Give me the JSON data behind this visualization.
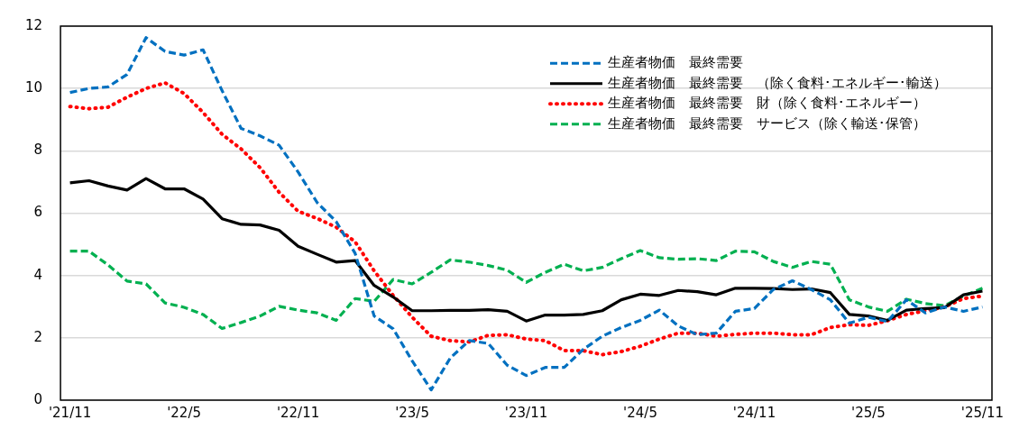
{
  "chart_data": {
    "type": "line",
    "categories": [
      "'21/11",
      null,
      null,
      null,
      null,
      null,
      "'22/5",
      null,
      null,
      null,
      null,
      null,
      "'22/11",
      null,
      null,
      null,
      null,
      null,
      "'23/5",
      null,
      null,
      null,
      null,
      null,
      "'23/11",
      null,
      null,
      null,
      null,
      null,
      "'24/5",
      null,
      null,
      null,
      null,
      null,
      "'24/11",
      null,
      null,
      null,
      null,
      null,
      "'25/5",
      null,
      null,
      null,
      null,
      null,
      "'25/11"
    ],
    "series": [
      {
        "name": "生産者物価　最終需要",
        "color": "#0070c0",
        "line_style": "dashed",
        "values": [
          9.87,
          10.0,
          10.05,
          10.45,
          11.63,
          11.19,
          11.07,
          11.24,
          9.93,
          8.72,
          8.48,
          8.18,
          7.32,
          6.34,
          5.73,
          4.71,
          2.7,
          2.29,
          1.26,
          0.33,
          1.35,
          1.91,
          1.82,
          1.12,
          0.79,
          1.05,
          1.05,
          1.63,
          2.05,
          2.33,
          2.56,
          2.89,
          2.38,
          2.1,
          2.15,
          2.85,
          2.94,
          3.55,
          3.83,
          3.55,
          3.22,
          2.47,
          2.66,
          2.52,
          3.22,
          2.8,
          2.99,
          2.85,
          2.99
        ]
      },
      {
        "name": "生産者物価　最終需要　（除く食料･エネルギー･輸送）",
        "color": "#000000",
        "line_style": "solid",
        "values": [
          6.97,
          7.04,
          6.87,
          6.74,
          7.11,
          6.78,
          6.78,
          6.45,
          5.82,
          5.64,
          5.62,
          5.45,
          4.94,
          4.68,
          4.43,
          4.48,
          3.68,
          3.31,
          2.87,
          2.87,
          2.88,
          2.88,
          2.9,
          2.85,
          2.54,
          2.73,
          2.73,
          2.75,
          2.87,
          3.22,
          3.4,
          3.36,
          3.52,
          3.48,
          3.38,
          3.59,
          3.59,
          3.58,
          3.55,
          3.57,
          3.45,
          2.75,
          2.7,
          2.56,
          2.89,
          2.94,
          2.97,
          3.38,
          3.5
        ]
      },
      {
        "name": "生産者物価　最終需要　財（除く食料･エネルギー）",
        "color": "#ff0000",
        "line_style": "dotted",
        "values": [
          9.42,
          9.35,
          9.4,
          9.72,
          10.0,
          10.18,
          9.84,
          9.23,
          8.53,
          8.06,
          7.46,
          6.67,
          6.06,
          5.83,
          5.55,
          5.08,
          4.15,
          3.36,
          2.66,
          2.05,
          1.91,
          1.87,
          2.08,
          2.1,
          1.96,
          1.91,
          1.59,
          1.59,
          1.46,
          1.56,
          1.73,
          1.96,
          2.15,
          2.15,
          2.05,
          2.11,
          2.15,
          2.15,
          2.1,
          2.1,
          2.33,
          2.42,
          2.4,
          2.55,
          2.75,
          2.87,
          2.99,
          3.26,
          3.34
        ]
      },
      {
        "name": "生産者物価　最終需要　サービス（除く輸送･保管）",
        "color": "#00b050",
        "line_style": "dashed",
        "values": [
          4.78,
          4.78,
          4.34,
          3.82,
          3.73,
          3.12,
          2.98,
          2.75,
          2.3,
          2.49,
          2.7,
          3.01,
          2.89,
          2.8,
          2.56,
          3.26,
          3.17,
          3.87,
          3.73,
          4.1,
          4.5,
          4.43,
          4.32,
          4.17,
          3.78,
          4.1,
          4.36,
          4.15,
          4.26,
          4.54,
          4.8,
          4.57,
          4.52,
          4.54,
          4.48,
          4.78,
          4.76,
          4.45,
          4.26,
          4.45,
          4.36,
          3.22,
          2.99,
          2.85,
          3.24,
          3.1,
          3.03,
          3.34,
          3.59
        ]
      }
    ],
    "ylim": [
      0,
      12
    ],
    "yticks": [
      0,
      2,
      4,
      6,
      8,
      10,
      12
    ],
    "grid": "y",
    "legend": "top right",
    "marker": "none"
  }
}
